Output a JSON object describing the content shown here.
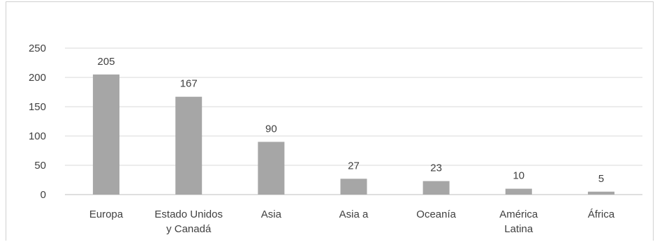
{
  "chart_data": {
    "type": "bar",
    "categories": [
      [
        "Europa"
      ],
      [
        "Estado Unidos",
        "y Canadá"
      ],
      [
        "Asia"
      ],
      [
        "Asia a"
      ],
      [
        "Oceanía"
      ],
      [
        "América",
        "Latina"
      ],
      [
        "África"
      ]
    ],
    "values": [
      205,
      167,
      90,
      27,
      23,
      10,
      5
    ],
    "ylim": [
      0,
      250
    ],
    "yticks": [
      "0",
      "50",
      "100",
      "150",
      "200",
      "250"
    ],
    "title": "",
    "xlabel": "",
    "ylabel": "",
    "grid": true,
    "legend": "none",
    "bar_color": "#a6a6a6",
    "grid_color": "#d9d9d9",
    "text_color": "#404040"
  }
}
